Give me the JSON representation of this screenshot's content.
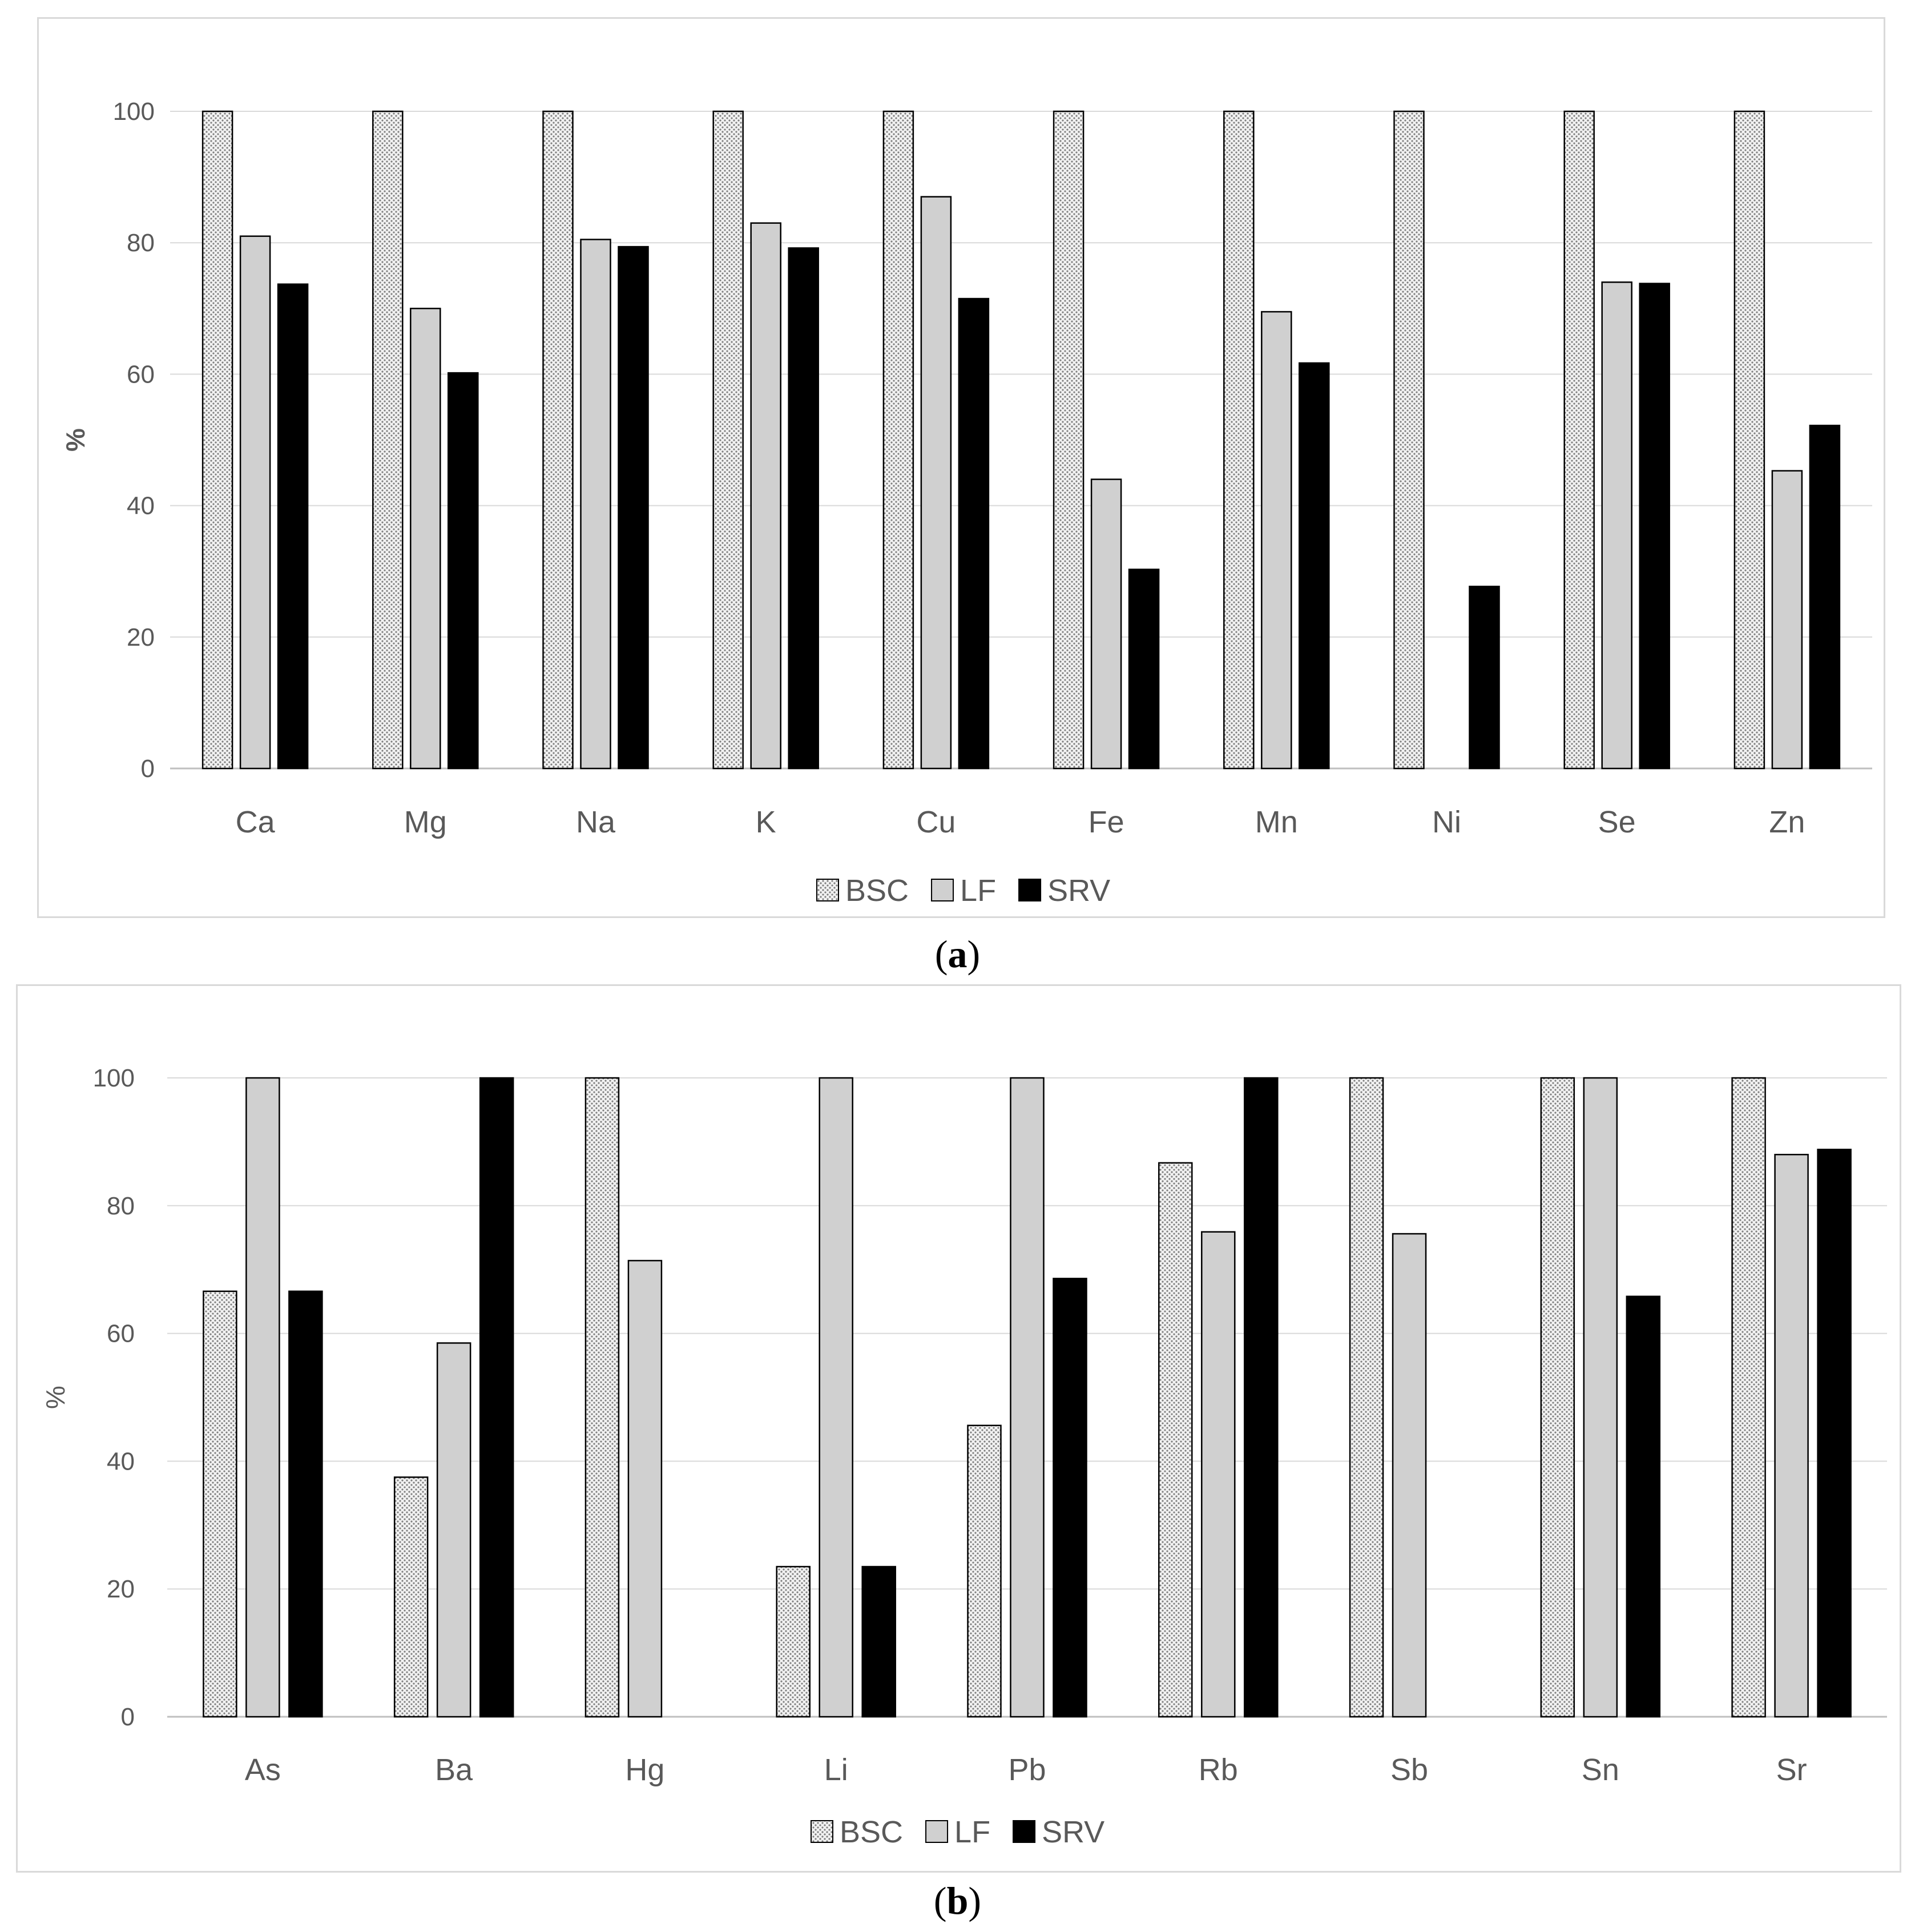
{
  "chart_data": [
    {
      "type": "bar",
      "panel_label": "a",
      "title": "",
      "xlabel": "",
      "ylabel": "%",
      "ylim": [
        0,
        100
      ],
      "yticks": [
        "0",
        "20",
        "40",
        "60",
        "80",
        "100"
      ],
      "grid": true,
      "legend_position": "bottom",
      "categories": [
        "Ca",
        "Mg",
        "Na",
        "K",
        "Cu",
        "Fe",
        "Mn",
        "Ni",
        "Se",
        "Zn"
      ],
      "series": [
        {
          "name": "BSC",
          "color": "#e8e8e8",
          "pattern": "dotted",
          "values": [
            100,
            100,
            100,
            100,
            100,
            100,
            100,
            100,
            100,
            100
          ]
        },
        {
          "name": "LF",
          "color": "#d0d0d0",
          "pattern": "solid",
          "values": [
            81,
            70,
            80.5,
            83,
            87,
            44,
            69.5,
            0,
            74,
            45.3
          ]
        },
        {
          "name": "SRV",
          "color": "#000000",
          "pattern": "solid",
          "values": [
            73.7,
            60.2,
            79.4,
            79.2,
            71.5,
            30.3,
            61.7,
            27.7,
            73.8,
            52.2
          ]
        }
      ]
    },
    {
      "type": "bar",
      "panel_label": "b",
      "title": "",
      "xlabel": "",
      "ylabel": "%",
      "ylim": [
        0,
        100
      ],
      "yticks": [
        "0",
        "20",
        "40",
        "60",
        "80",
        "100"
      ],
      "grid": true,
      "legend_position": "bottom",
      "categories": [
        "As",
        "Ba",
        "Hg",
        "Li",
        "Pb",
        "Rb",
        "Sb",
        "Sn",
        "Sr"
      ],
      "series": [
        {
          "name": "BSC",
          "color": "#e8e8e8",
          "pattern": "dotted",
          "values": [
            66.6,
            37.5,
            100,
            23.5,
            45.6,
            86.7,
            100,
            100,
            100
          ]
        },
        {
          "name": "LF",
          "color": "#d0d0d0",
          "pattern": "solid",
          "values": [
            100,
            58.5,
            71.4,
            100,
            100,
            75.9,
            75.6,
            100,
            88
          ]
        },
        {
          "name": "SRV",
          "color": "#000000",
          "pattern": "solid",
          "values": [
            66.6,
            100,
            0,
            23.5,
            68.6,
            100,
            0,
            65.8,
            88.8
          ]
        }
      ]
    }
  ]
}
